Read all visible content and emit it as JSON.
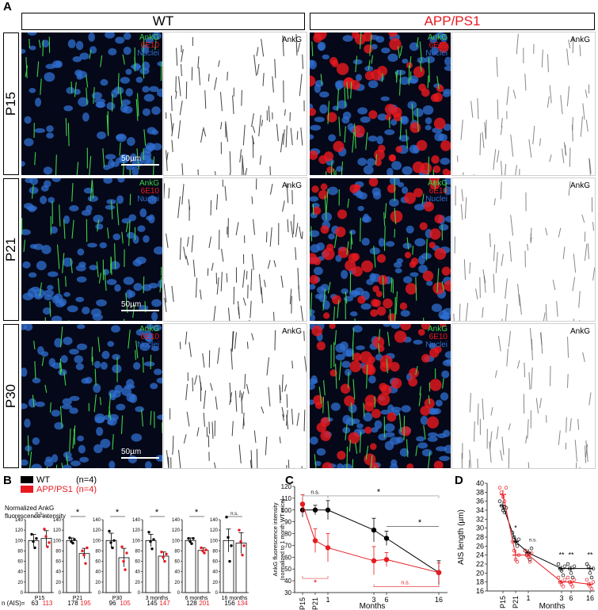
{
  "panel_letters": {
    "a": "A",
    "b": "B",
    "c": "C",
    "d": "D"
  },
  "header": {
    "wt": "WT",
    "app": "APP/PS1"
  },
  "rows": [
    {
      "label": "P15",
      "scale": "50µm"
    },
    {
      "label": "P21",
      "scale": "50µm"
    },
    {
      "label": "P30",
      "scale": "50µm"
    }
  ],
  "channels": {
    "ankg": "AnkG",
    "e10": "6E10",
    "nuclei": "Nuclei"
  },
  "colors": {
    "wt": "#000000",
    "app": "#e8191f",
    "ankg": "#3fd24a",
    "e10": "#e8191f",
    "nuclei": "#2f6fd1"
  },
  "legend_b": {
    "wt": "WT",
    "app": "APP/PS1",
    "wt_n": "(n=4)",
    "app_n": "(n=4)"
  },
  "chart_data": [
    {
      "type": "bar",
      "panel": "B",
      "ylabel": "Normalized AnkG\nfluorescence intensity",
      "ylim": [
        0,
        140
      ],
      "yticks": [
        0,
        20,
        40,
        60,
        80,
        100,
        120,
        140
      ],
      "n_label": "n (AIS)=",
      "groups": [
        {
          "label": "P15",
          "wt": 100,
          "wt_err": 12,
          "app": 104,
          "app_err": 15,
          "sig": "n.s.",
          "n_wt": "63",
          "n_app": "113",
          "wt_pts": [
            112,
            98,
            86,
            104
          ],
          "app_pts": [
            122,
            108,
            88,
            96
          ]
        },
        {
          "label": "P21",
          "wt": 100,
          "wt_err": 5,
          "app": 75,
          "app_err": 10,
          "sig": "*",
          "n_wt": "178",
          "n_app": "195",
          "wt_pts": [
            105,
            98,
            95,
            102
          ],
          "app_pts": [
            80,
            72,
            56,
            86
          ]
        },
        {
          "label": "P30",
          "wt": 100,
          "wt_err": 14,
          "app": 67,
          "app_err": 18,
          "sig": "*",
          "n_wt": "96",
          "n_app": "105",
          "wt_pts": [
            118,
            96,
            86,
            100
          ],
          "app_pts": [
            88,
            60,
            44,
            76
          ]
        },
        {
          "label": "3 months",
          "wt": 100,
          "wt_err": 12,
          "app": 70,
          "app_err": 8,
          "sig": "*",
          "n_wt": "145",
          "n_app": "147",
          "wt_pts": [
            116,
            98,
            84,
            102
          ],
          "app_pts": [
            78,
            68,
            60,
            74
          ]
        },
        {
          "label": "6 months",
          "wt": 100,
          "wt_err": 5,
          "app": 81,
          "app_err": 5,
          "sig": "*",
          "n_wt": "128",
          "n_app": "201",
          "wt_pts": [
            104,
            98,
            94,
            104
          ],
          "app_pts": [
            86,
            80,
            76,
            82
          ]
        },
        {
          "label": "16 months",
          "wt": 100,
          "wt_err": 22,
          "app": 95,
          "app_err": 20,
          "sig": "n.s.",
          "n_wt": "156",
          "n_app": "134",
          "wt_pts": [
            145,
            106,
            60,
            90
          ],
          "app_pts": [
            120,
            98,
            72,
            90
          ]
        }
      ]
    },
    {
      "type": "line",
      "panel": "C",
      "ylabel": "AnkG fluorescence intensity",
      "ylabel2": "(normalized to 1 month WT mice)",
      "xlabel": "Months",
      "ylim": [
        30,
        120
      ],
      "yticks": [
        30,
        40,
        50,
        60,
        70,
        80,
        90,
        100,
        110,
        120
      ],
      "xtick_labels": [
        "P15",
        "P21",
        "1",
        "3",
        "6",
        "16"
      ],
      "series": [
        {
          "name": "WT",
          "values": [
            100,
            100,
            100,
            83,
            76,
            47
          ],
          "errors": [
            6,
            4,
            8,
            10,
            6,
            10
          ]
        },
        {
          "name": "APP/PS1",
          "values": [
            105,
            74,
            68,
            57,
            58,
            47
          ],
          "errors": [
            8,
            10,
            12,
            12,
            6,
            8
          ]
        }
      ],
      "annotations": {
        "ns_top": "n.s.",
        "star_top": "*",
        "star_mid": "*",
        "star_bottom": "*",
        "ns_bottom": "n.s."
      }
    },
    {
      "type": "scatter",
      "panel": "D",
      "ylabel": "AIS length (µm)",
      "xlabel": "Months",
      "ylim": [
        16,
        40
      ],
      "yticks": [
        16,
        18,
        20,
        22,
        24,
        26,
        28,
        30,
        32,
        34,
        36,
        38,
        40
      ],
      "xtick_labels": [
        "P15",
        "P21",
        "1",
        "3",
        "6",
        "16"
      ],
      "series": [
        {
          "name": "WT",
          "values": [
            35,
            27,
            24.5,
            21,
            21,
            21
          ],
          "errors": [
            1,
            0.8,
            0.8,
            0.6,
            0.6,
            0.6
          ],
          "points": [
            [
              36,
              35,
              34,
              33.5,
              34.5
            ],
            [
              29,
              28,
              27,
              26,
              27.5
            ],
            [
              25,
              24,
              24.5,
              23,
              25.5
            ],
            [
              22,
              21,
              20.5,
              19.5,
              21.5
            ],
            [
              22,
              21,
              20,
              19,
              21.5
            ],
            [
              22,
              21.5,
              20,
              19,
              21
            ]
          ]
        },
        {
          "name": "APP/PS1",
          "values": [
            37.5,
            24,
            24,
            18,
            18,
            17.5
          ],
          "errors": [
            1,
            1.2,
            0.8,
            0.5,
            0.5,
            0.5
          ],
          "points": [
            [
              39,
              38,
              37,
              36,
              39
            ],
            [
              27,
              25,
              23,
              22.5,
              24
            ],
            [
              25,
              24,
              23.5,
              22.5,
              24.5
            ],
            [
              19,
              18,
              17.5,
              17,
              18.5
            ],
            [
              19,
              18,
              17.5,
              17,
              18.5
            ],
            [
              18.5,
              17.5,
              17,
              16.5,
              18
            ]
          ]
        }
      ],
      "sig": [
        "",
        "*",
        "n.s.",
        "**",
        "**",
        "**"
      ]
    }
  ]
}
